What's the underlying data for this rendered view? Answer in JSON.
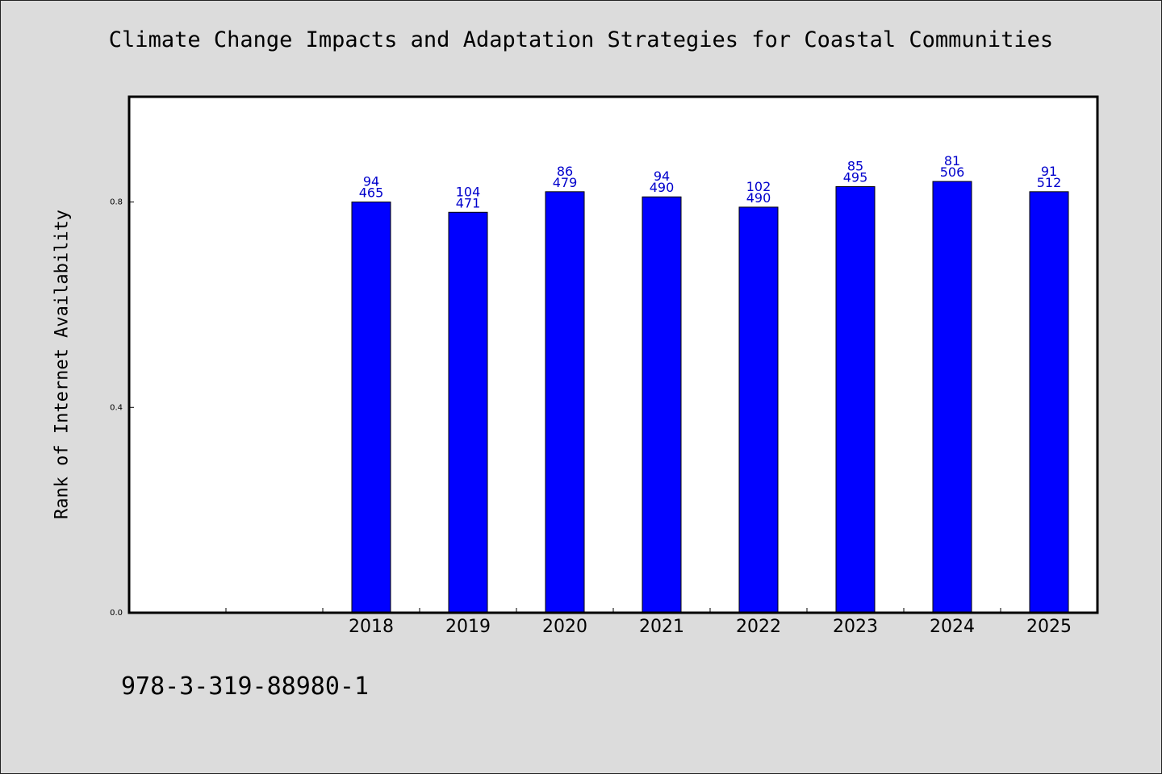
{
  "chart_data": {
    "type": "bar",
    "title": "Climate Change Impacts and Adaptation Strategies for Coastal Communities",
    "xlabel": "",
    "ylabel": "Rank of Internet Availability",
    "categories": [
      "",
      "",
      "2018",
      "2019",
      "2020",
      "2021",
      "2022",
      "2023",
      "2024",
      "2025"
    ],
    "series": [
      {
        "values": [
          null,
          null,
          0.8,
          0.78,
          0.82,
          0.81,
          0.79,
          0.83,
          0.84,
          0.82
        ],
        "labels_top": [
          null,
          null,
          "94",
          "104",
          "86",
          "94",
          "102",
          "85",
          "81",
          "91"
        ],
        "labels_bottom": [
          null,
          null,
          "465",
          "471",
          "479",
          "490",
          "490",
          "495",
          "506",
          "512"
        ],
        "color": "#0000ff"
      }
    ],
    "yticks": [
      "0.0",
      "0.4",
      "0.8"
    ],
    "ytick_values": [
      0.0,
      0.4,
      0.8
    ],
    "ylim": [
      0,
      1.005
    ],
    "grid": false,
    "legend": "none",
    "bar_label_color": "#0000cc"
  },
  "footnote": "978-3-319-88980-1"
}
